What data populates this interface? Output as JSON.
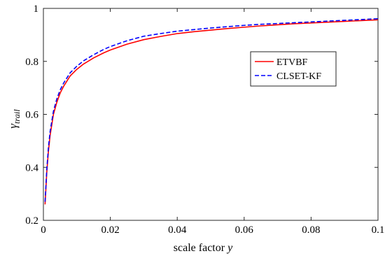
{
  "chart_data": {
    "type": "line",
    "xlabel": "scale factor",
    "xlabel_var": "y",
    "ylabel": "γ",
    "ylabel_sub": "trail",
    "xlim": [
      0,
      0.1
    ],
    "ylim": [
      0.2,
      1
    ],
    "xticks": [
      "0",
      "0.02",
      "0.04",
      "0.06",
      "0.08",
      "0.1"
    ],
    "xtick_values": [
      0,
      0.02,
      0.04,
      0.06,
      0.08,
      0.1
    ],
    "yticks": [
      "0.2",
      "0.4",
      "0.6",
      "0.8",
      "1"
    ],
    "ytick_values": [
      0.2,
      0.4,
      0.6,
      0.8,
      1.0
    ],
    "grid": false,
    "legend_position": "right, upper-middle",
    "x": [
      0.0005,
      0.001,
      0.0015,
      0.002,
      0.003,
      0.004,
      0.005,
      0.006,
      0.008,
      0.01,
      0.012,
      0.015,
      0.018,
      0.02,
      0.025,
      0.03,
      0.035,
      0.04,
      0.045,
      0.05,
      0.055,
      0.06,
      0.065,
      0.07,
      0.075,
      0.08,
      0.085,
      0.09,
      0.095,
      0.1
    ],
    "series": [
      {
        "name": "ETVBF",
        "color": "#ff0000",
        "dash": "solid",
        "values": [
          0.26,
          0.38,
          0.46,
          0.52,
          0.6,
          0.645,
          0.68,
          0.705,
          0.745,
          0.77,
          0.79,
          0.813,
          0.832,
          0.843,
          0.865,
          0.882,
          0.894,
          0.905,
          0.912,
          0.918,
          0.924,
          0.929,
          0.934,
          0.938,
          0.942,
          0.945,
          0.948,
          0.951,
          0.954,
          0.957
        ]
      },
      {
        "name": "CLSET-KF",
        "color": "#0000ff",
        "dash": "dashed",
        "values": [
          0.27,
          0.39,
          0.475,
          0.535,
          0.612,
          0.658,
          0.692,
          0.717,
          0.757,
          0.782,
          0.802,
          0.825,
          0.845,
          0.856,
          0.878,
          0.895,
          0.905,
          0.914,
          0.92,
          0.926,
          0.931,
          0.936,
          0.94,
          0.943,
          0.946,
          0.949,
          0.952,
          0.955,
          0.958,
          0.961
        ]
      }
    ]
  }
}
